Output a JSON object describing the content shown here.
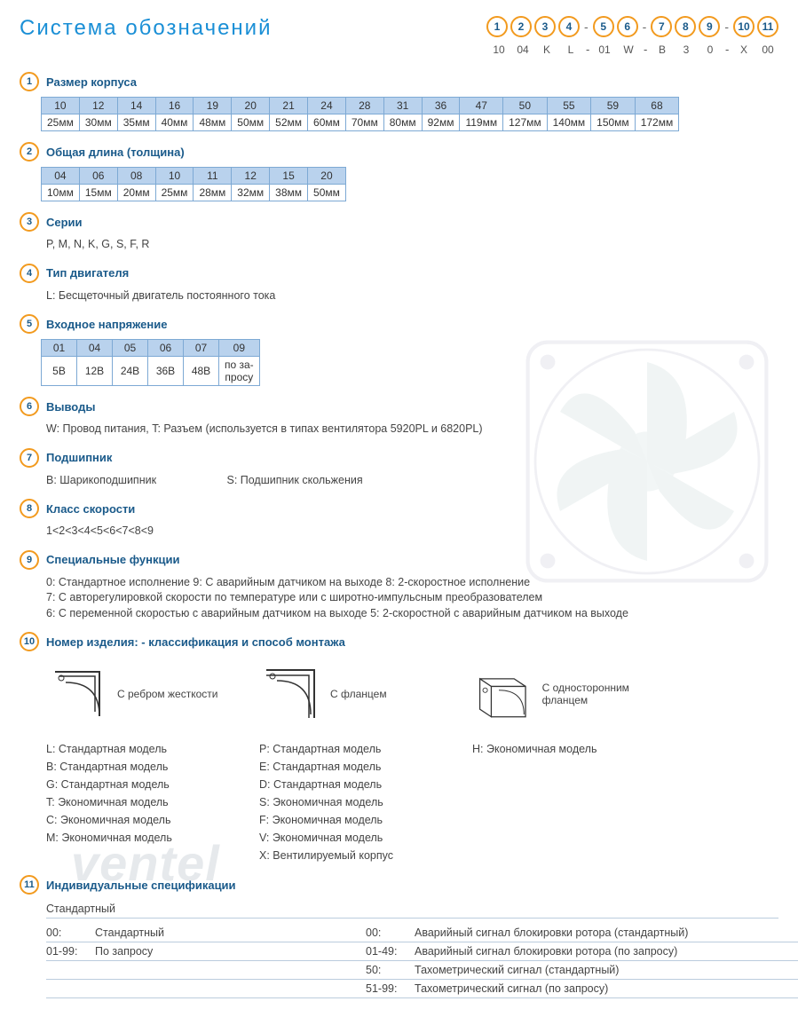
{
  "title": "Система обозначений",
  "code_positions": [
    "1",
    "2",
    "3",
    "4",
    "5",
    "6",
    "7",
    "8",
    "9",
    "10",
    "11"
  ],
  "code_example": [
    "10",
    "04",
    "K",
    "L",
    "01",
    "W",
    "B",
    "3",
    "0",
    "X",
    "00"
  ],
  "code_dashes_after": [
    4,
    6,
    9
  ],
  "watermark": "ventel",
  "sections": {
    "s1": {
      "num": "1",
      "title": "Размер корпуса",
      "table": {
        "headers": [
          "10",
          "12",
          "14",
          "16",
          "19",
          "20",
          "21",
          "24",
          "28",
          "31",
          "36",
          "47",
          "50",
          "55",
          "59",
          "68"
        ],
        "row": [
          "25мм",
          "30мм",
          "35мм",
          "40мм",
          "48мм",
          "50мм",
          "52мм",
          "60мм",
          "70мм",
          "80мм",
          "92мм",
          "119мм",
          "127мм",
          "140мм",
          "150мм",
          "172мм"
        ]
      }
    },
    "s2": {
      "num": "2",
      "title": "Общая длина (толщина)",
      "table": {
        "headers": [
          "04",
          "06",
          "08",
          "10",
          "11",
          "12",
          "15",
          "20"
        ],
        "row": [
          "10мм",
          "15мм",
          "20мм",
          "25мм",
          "28мм",
          "32мм",
          "38мм",
          "50мм"
        ]
      }
    },
    "s3": {
      "num": "3",
      "title": "Серии",
      "text": "P, M, N, K, G, S, F, R"
    },
    "s4": {
      "num": "4",
      "title": "Тип двигателя",
      "text": "L: Бесщеточный двигатель постоянного тока"
    },
    "s5": {
      "num": "5",
      "title": "Входное напряжение",
      "table": {
        "headers": [
          "01",
          "04",
          "05",
          "06",
          "07",
          "09"
        ],
        "row": [
          "5В",
          "12В",
          "24В",
          "36В",
          "48В",
          "по за-\nпросу"
        ]
      }
    },
    "s6": {
      "num": "6",
      "title": "Выводы",
      "text": "W: Провод питания, T: Разъем (используется в типах вентилятора  5920PL и 6820PL)"
    },
    "s7": {
      "num": "7",
      "title": "Подшипник",
      "text_parts": [
        "B: Шарикоподшипник",
        "S: Подшипник скольжения"
      ]
    },
    "s8": {
      "num": "8",
      "title": "Класс скорости",
      "text": "1<2<3<4<5<6<7<8<9"
    },
    "s9": {
      "num": "9",
      "title": "Специальные функции",
      "lines": [
        "0: Стандартное исполнение   9:  С аварийным датчиком на выходе   8: 2-скоростное исполнение",
        "7: С авторегулировкой скорости по температуре или с широтно-импульсным преобразователем",
        "6: С переменной скоростью с аварийным датчиком на выходе   5: 2-скоростной с аварийным датчиком на выходе"
      ]
    },
    "s10": {
      "num": "10",
      "title": "Номер изделия: - классификация  и способ монтажа",
      "mounts": [
        {
          "label": "С ребром жесткости"
        },
        {
          "label": "С фланцем"
        },
        {
          "label": "С односторонним фланцем"
        }
      ],
      "cols": [
        [
          "L:  Стандартная модель",
          "B:  Стандартная модель",
          "G:  Стандартная модель",
          "T:  Экономичная модель",
          "C:  Экономичная модель",
          "M:  Экономичная модель"
        ],
        [
          "P:  Стандартная модель",
          "E:  Стандартная модель",
          "D:  Стандартная модель",
          "S:  Экономичная модель",
          "F:  Экономичная модель",
          "V:  Экономичная модель",
          "X:  Вентилируемый корпус"
        ],
        [
          "H:  Экономичная модель"
        ]
      ]
    },
    "s11": {
      "num": "11",
      "title": "Индивидуальные спецификации",
      "header_label": "Стандартный",
      "rows": [
        {
          "lcode": "00:",
          "ltext": "Стандартный",
          "rcode": "00:",
          "rtext": "Аварийный сигнал блокировки ротора (стандартный)"
        },
        {
          "lcode": "01-99:",
          "ltext": "По запросу",
          "rcode": "01-49:",
          "rtext": "Аварийный сигнал блокировки ротора (по запросу)"
        },
        {
          "lcode": "",
          "ltext": "",
          "rcode": "50:",
          "rtext": "Тахометрический сигнал (стандартный)"
        },
        {
          "lcode": "",
          "ltext": "",
          "rcode": "51-99:",
          "rtext": "Тахометрический сигнал (по запросу)"
        }
      ]
    }
  },
  "colors": {
    "accent_orange": "#f29a1e",
    "accent_blue": "#1a8fd6",
    "title_blue": "#1a5a8a",
    "table_header_bg": "#b9d2ed",
    "table_border": "#7da9d4"
  }
}
